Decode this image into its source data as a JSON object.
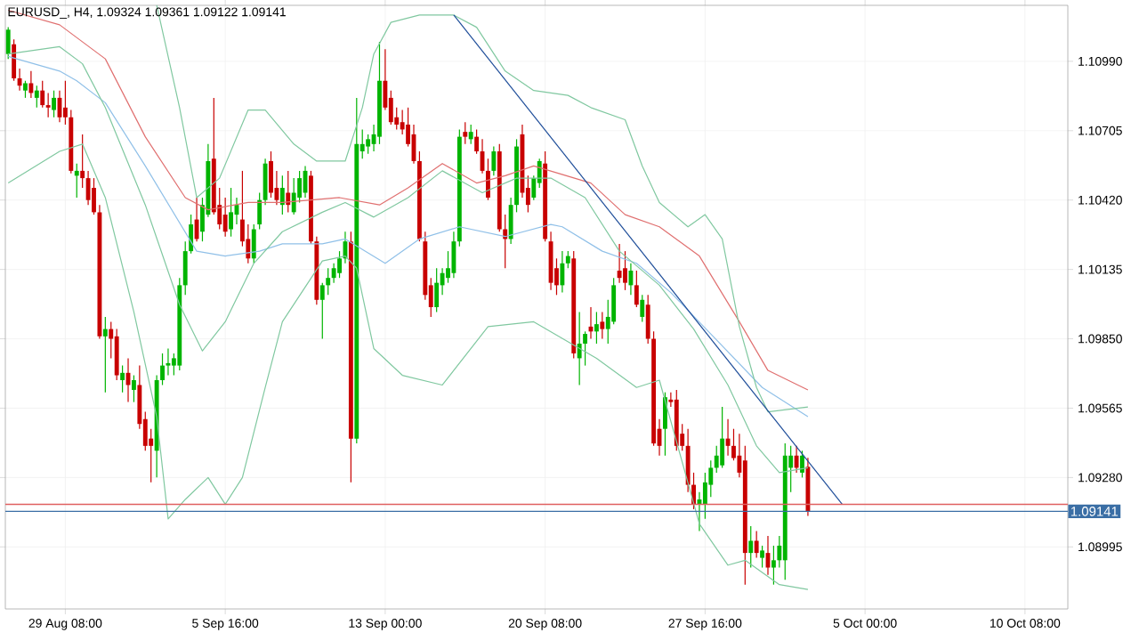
{
  "chart_data": {
    "type": "candlestick",
    "title": "EURUSD_, H4, 1.09324 1.09361 1.09122 1.09141",
    "categories": [
      null,
      null,
      null,
      null,
      null,
      null,
      null,
      null,
      null,
      null,
      "29 Aug 08:00",
      null,
      null,
      null,
      null,
      null,
      null,
      null,
      null,
      null,
      null,
      null,
      null,
      null,
      null,
      null,
      null,
      null,
      null,
      null,
      null,
      null,
      null,
      null,
      null,
      null,
      null,
      null,
      "5 Sep 16:00",
      null,
      null,
      null,
      null,
      null,
      null,
      null,
      null,
      null,
      null,
      null,
      null,
      null,
      null,
      null,
      null,
      null,
      null,
      null,
      null,
      null,
      null,
      null,
      null,
      null,
      null,
      null,
      "13 Sep 00:00",
      null,
      null,
      null,
      null,
      null,
      null,
      null,
      null,
      null,
      null,
      null,
      null,
      null,
      null,
      null,
      null,
      null,
      null,
      null,
      null,
      null,
      null,
      null,
      null,
      null,
      null,
      null,
      "20 Sep 08:00",
      null,
      null,
      null,
      null,
      null,
      null,
      null,
      null,
      null,
      null,
      null,
      null,
      null,
      null,
      null,
      null,
      null,
      null,
      null,
      null,
      null,
      null,
      null,
      null,
      null,
      null,
      null,
      "27 Sep 16:00",
      null,
      null,
      null,
      null,
      null,
      null,
      null,
      null,
      null,
      null,
      null,
      null,
      null,
      null,
      null,
      null,
      null,
      null,
      null,
      null,
      null,
      null,
      null,
      null,
      null,
      null,
      null,
      "5 Oct 00:00",
      null,
      null,
      null,
      null,
      null,
      null,
      null,
      null,
      null,
      null,
      null,
      null,
      null,
      null,
      null,
      null,
      null,
      null,
      null,
      null,
      null,
      null,
      null,
      null,
      null,
      null,
      null,
      "10 Oct 08:00",
      null,
      null,
      null,
      null,
      null,
      null,
      null
    ],
    "colors": [
      "#00b400",
      "#c80000",
      "#c80000",
      "#00b400",
      "#c80000",
      "#00b400",
      "#c80000",
      "#c80000",
      "#00b400",
      "#c80000",
      "#c80000",
      "#c80000",
      "#00b400",
      "#c80000",
      "#c80000",
      "#c80000",
      "#c80000",
      "#00b400",
      "#c80000",
      "#c80000",
      "#00b400",
      "#c80000",
      "#00b400",
      "#c80000",
      "#c80000",
      "#c80000",
      "#00b400",
      "#00b400",
      "#00b400",
      "#00b400",
      "#00b400",
      "#00b400",
      "#00b400",
      "#c80000",
      "#00b400",
      "#00b400",
      "#c80000",
      "#c80000",
      "#c80000",
      "#00b400",
      "#00b400",
      "#c80000",
      "#c80000",
      "#00b400",
      "#00b400",
      "#00b400",
      "#c80000",
      "#c80000",
      "#00b400",
      "#c80000",
      "#00b400",
      "#00b400",
      "#00b400",
      "#c80000",
      "#c80000",
      "#00b400",
      "#00b400",
      "#00b400",
      "#00b400",
      "#00b400",
      "#c80000",
      "#00b400",
      "#00b400",
      "#00b400",
      "#00b400",
      "#00b400",
      "#c80000",
      "#c80000",
      "#c80000",
      "#c80000",
      "#c80000",
      "#c80000",
      "#c80000",
      "#c80000",
      "#c80000",
      "#00b400",
      "#00b400",
      "#00b400",
      "#00b400",
      "#00b400",
      "#c80000",
      "#00b400",
      "#c80000",
      "#c80000",
      "#c80000",
      "#00b400",
      "#c80000",
      "#c80000",
      "#00b400",
      "#00b400",
      "#c80000",
      "#c80000",
      "#00b400",
      "#00b400",
      "#c80000",
      "#c80000",
      "#c80000",
      "#00b400",
      "#00b400",
      "#c80000",
      "#00b400",
      "#00b400",
      "#c80000",
      "#00b400",
      "#c80000",
      "#00b400",
      "#00b400",
      "#c80000",
      "#c80000",
      "#00b400",
      "#c80000",
      "#00b400",
      "#c80000",
      "#c80000",
      "#c80000",
      "#00b400",
      "#c80000",
      "#c80000",
      "#c80000",
      "#c80000",
      "#c80000",
      "#00b400",
      "#00b400",
      "#00b400",
      "#00b400",
      "#00b400",
      "#c80000",
      "#c80000",
      "#c80000",
      "#c80000",
      "#00b400",
      "#c80000",
      "#00b400",
      "#c80000",
      "#00b400",
      "#00b400",
      "#00b400",
      "#00b400",
      "#c80000",
      "#00b400",
      "#c80000",
      null,
      null,
      null,
      null,
      null,
      null,
      null,
      null,
      null,
      null,
      null,
      null,
      null,
      null,
      null,
      null,
      null,
      null,
      null,
      null,
      null,
      null,
      null,
      null,
      null,
      null,
      null,
      null,
      null,
      null,
      null,
      null,
      null,
      null,
      null,
      null,
      null,
      null,
      null,
      null,
      null,
      null,
      null,
      null,
      null
    ],
    "ohlc": [
      [
        1.1102,
        1.1113,
        1.11,
        1.1112
      ],
      [
        1.1106,
        1.1108,
        1.1091,
        1.1092
      ],
      [
        1.1092,
        1.1096,
        1.1087,
        1.1089
      ],
      [
        1.1087,
        1.1091,
        1.1084,
        1.109
      ],
      [
        1.109,
        1.1095,
        1.1084,
        1.1086
      ],
      [
        1.1084,
        1.1089,
        1.108,
        1.1087
      ],
      [
        1.1087,
        1.1091,
        1.108,
        1.1081
      ],
      [
        1.1081,
        1.1086,
        1.1076,
        1.108
      ],
      [
        1.1079,
        1.1087,
        1.1076,
        1.1084
      ],
      [
        1.1084,
        1.1087,
        1.1074,
        1.1076
      ],
      [
        1.108,
        1.1091,
        1.1073,
        1.1076
      ],
      [
        1.1076,
        1.1079,
        1.1053,
        1.1054
      ],
      [
        1.1052,
        1.1057,
        1.1043,
        1.1054
      ],
      [
        1.1054,
        1.1069,
        1.1047,
        1.1051
      ],
      [
        1.1051,
        1.1054,
        1.104,
        1.1042
      ],
      [
        1.1047,
        1.1051,
        1.1036,
        1.1037
      ],
      [
        1.1037,
        1.104,
        1.0985,
        1.0986
      ],
      [
        1.0986,
        1.0994,
        1.0963,
        1.0989
      ],
      [
        1.0989,
        1.0992,
        1.0977,
        1.0985
      ],
      [
        1.0986,
        1.0989,
        1.0968,
        1.097
      ],
      [
        1.0968,
        1.0974,
        1.0963,
        1.0971
      ],
      [
        1.0971,
        1.0977,
        1.0959,
        1.0966
      ],
      [
        1.0964,
        1.097,
        1.0959,
        1.0968
      ],
      [
        1.0966,
        1.0974,
        1.0948,
        1.095
      ],
      [
        1.0952,
        1.0955,
        1.0939,
        1.0941
      ],
      [
        1.0944,
        1.0948,
        1.0926,
        1.0941
      ],
      [
        1.0939,
        1.097,
        1.0928,
        1.0968
      ],
      [
        1.0968,
        1.0979,
        1.0966,
        1.0974
      ],
      [
        1.0974,
        1.0981,
        1.097,
        1.0975
      ],
      [
        1.0974,
        1.0979,
        1.097,
        1.0977
      ],
      [
        1.0974,
        1.101,
        1.0972,
        1.1007
      ],
      [
        1.1007,
        1.1025,
        1.1003,
        1.1021
      ],
      [
        1.1021,
        1.1036,
        1.102,
        1.1032
      ],
      [
        1.1034,
        1.1043,
        1.1025,
        1.1026
      ],
      [
        1.1029,
        1.1043,
        1.1025,
        1.104
      ],
      [
        1.1036,
        1.1065,
        1.1035,
        1.1058
      ],
      [
        1.1059,
        1.1084,
        1.1036,
        1.1037
      ],
      [
        1.104,
        1.1047,
        1.103,
        1.1032
      ],
      [
        1.1036,
        1.1043,
        1.1027,
        1.1029
      ],
      [
        1.103,
        1.1047,
        1.1027,
        1.1037
      ],
      [
        1.1036,
        1.1043,
        1.1032,
        1.104
      ],
      [
        1.1034,
        1.1054,
        1.1023,
        1.1025
      ],
      [
        1.1026,
        1.1032,
        1.1016,
        1.1018
      ],
      [
        1.1018,
        1.1032,
        1.1016,
        1.103
      ],
      [
        1.1032,
        1.1045,
        1.103,
        1.1042
      ],
      [
        1.1042,
        1.1059,
        1.104,
        1.1057
      ],
      [
        1.1058,
        1.1062,
        1.1043,
        1.1045
      ],
      [
        1.1047,
        1.1054,
        1.104,
        1.1042
      ],
      [
        1.104,
        1.1052,
        1.1036,
        1.1047
      ],
      [
        1.1045,
        1.1054,
        1.1037,
        1.104
      ],
      [
        1.1037,
        1.1051,
        1.1036,
        1.1045
      ],
      [
        1.1043,
        1.1054,
        1.1041,
        1.1051
      ],
      [
        1.1045,
        1.1056,
        1.1043,
        1.1054
      ],
      [
        1.1052,
        1.1054,
        1.1024,
        1.1025
      ],
      [
        1.1025,
        1.1027,
        1.0999,
        1.1001
      ],
      [
        1.1001,
        1.1008,
        1.0985,
        1.1007
      ],
      [
        1.1007,
        1.1014,
        1.1003,
        1.101
      ],
      [
        1.101,
        1.1016,
        1.1008,
        1.1014
      ],
      [
        1.1012,
        1.1021,
        1.101,
        1.1018
      ],
      [
        1.1018,
        1.1029,
        1.1016,
        1.1025
      ],
      [
        1.1025,
        1.1029,
        1.0926,
        1.0944
      ],
      [
        1.0944,
        1.1084,
        1.0942,
        1.1065
      ],
      [
        1.1062,
        1.1071,
        1.1059,
        1.1065
      ],
      [
        1.1064,
        1.1069,
        1.1061,
        1.1067
      ],
      [
        1.1065,
        1.1073,
        1.1062,
        1.1069
      ],
      [
        1.1068,
        1.1107,
        1.1065,
        1.1091
      ],
      [
        1.1091,
        1.1104,
        1.1079,
        1.108
      ],
      [
        1.1084,
        1.1087,
        1.1073,
        1.1074
      ],
      [
        1.1076,
        1.108,
        1.1071,
        1.1073
      ],
      [
        1.1074,
        1.1079,
        1.1069,
        1.1071
      ],
      [
        1.1073,
        1.108,
        1.1064,
        1.1065
      ],
      [
        1.1069,
        1.1073,
        1.1057,
        1.1058
      ],
      [
        1.1058,
        1.1062,
        1.1025,
        1.1026
      ],
      [
        1.1025,
        1.1029,
        1.1001,
        1.1003
      ],
      [
        1.1007,
        1.101,
        1.0994,
        1.0998
      ],
      [
        1.0998,
        1.1014,
        1.0996,
        1.1008
      ],
      [
        1.1007,
        1.1014,
        1.1003,
        1.1012
      ],
      [
        1.101,
        1.1021,
        1.1008,
        1.1014
      ],
      [
        1.1012,
        1.1029,
        1.101,
        1.1025
      ],
      [
        1.1025,
        1.1071,
        1.1023,
        1.1068
      ],
      [
        1.107,
        1.1074,
        1.1065,
        1.1068
      ],
      [
        1.1067,
        1.1073,
        1.1065,
        1.107
      ],
      [
        1.1068,
        1.1071,
        1.1061,
        1.1062
      ],
      [
        1.1062,
        1.1067,
        1.1053,
        1.1054
      ],
      [
        1.1054,
        1.1059,
        1.1042,
        1.1043
      ],
      [
        1.1054,
        1.1064,
        1.1052,
        1.1062
      ],
      [
        1.1062,
        1.1065,
        1.1029,
        1.103
      ],
      [
        1.103,
        1.1036,
        1.1014,
        1.1026
      ],
      [
        1.1026,
        1.1043,
        1.1024,
        1.104
      ],
      [
        1.104,
        1.1067,
        1.1037,
        1.1064
      ],
      [
        1.1069,
        1.1073,
        1.1043,
        1.1045
      ],
      [
        1.1047,
        1.1052,
        1.1037,
        1.104
      ],
      [
        1.1043,
        1.1052,
        1.1042,
        1.1051
      ],
      [
        1.1049,
        1.1059,
        1.1047,
        1.1058
      ],
      [
        1.1057,
        1.1062,
        1.1025,
        1.1026
      ],
      [
        1.1025,
        1.1029,
        1.1005,
        1.1008
      ],
      [
        1.1014,
        1.1018,
        1.1003,
        1.1007
      ],
      [
        1.1007,
        1.1021,
        1.1004,
        1.1016
      ],
      [
        1.1016,
        1.1021,
        1.1014,
        1.1019
      ],
      [
        1.1018,
        1.1021,
        1.0977,
        1.0979
      ],
      [
        1.0977,
        1.0996,
        1.0966,
        1.0983
      ],
      [
        1.0983,
        1.0988,
        1.0974,
        1.0987
      ],
      [
        1.099,
        1.0998,
        1.0985,
        1.0988
      ],
      [
        1.0988,
        1.0996,
        1.0983,
        1.0991
      ],
      [
        1.0992,
        1.0996,
        1.0985,
        1.0989
      ],
      [
        1.0989,
        1.1001,
        1.0983,
        1.0994
      ],
      [
        1.0992,
        1.101,
        1.0991,
        1.1007
      ],
      [
        1.1013,
        1.1024,
        1.1008,
        1.101
      ],
      [
        1.1014,
        1.1021,
        1.1005,
        1.1008
      ],
      [
        1.1007,
        1.1016,
        1.1003,
        1.1013
      ],
      [
        1.1007,
        1.1013,
        1.0998,
        1.0999
      ],
      [
        1.0994,
        1.1003,
        1.0992,
        1.1001
      ],
      [
        1.0999,
        1.1003,
        1.0983,
        1.0985
      ],
      [
        1.0985,
        1.0988,
        1.0941,
        1.0942
      ],
      [
        1.0948,
        1.0952,
        1.0937,
        1.0941
      ],
      [
        1.0948,
        1.0963,
        1.0937,
        1.0961
      ],
      [
        1.096,
        1.0963,
        1.0957,
        1.0959
      ],
      [
        1.096,
        1.0964,
        1.0939,
        1.0941
      ],
      [
        1.0946,
        1.095,
        1.0939,
        1.0941
      ],
      [
        1.0941,
        1.0948,
        1.0922,
        1.0925
      ],
      [
        1.0925,
        1.093,
        1.0915,
        1.0917
      ],
      [
        1.0917,
        1.0922,
        1.0906,
        1.0919
      ],
      [
        1.0917,
        1.093,
        1.0911,
        1.0926
      ],
      [
        1.0925,
        1.0935,
        1.092,
        1.0932
      ],
      [
        1.0932,
        1.0941,
        1.093,
        1.0937
      ],
      [
        1.0933,
        1.0957,
        1.0932,
        1.0944
      ],
      [
        1.0944,
        1.0952,
        1.0937,
        1.0941
      ],
      [
        1.0941,
        1.0948,
        1.0935,
        1.0936
      ],
      [
        1.0937,
        1.0946,
        1.0928,
        1.093
      ],
      [
        1.0935,
        1.0941,
        1.0884,
        1.0897
      ],
      [
        1.0897,
        1.0908,
        1.0891,
        1.0902
      ],
      [
        1.0902,
        1.0906,
        1.0895,
        1.0897
      ],
      [
        1.0895,
        1.09,
        1.0891,
        1.0898
      ],
      [
        1.0897,
        1.0904,
        1.0888,
        1.0891
      ],
      [
        1.0891,
        1.09,
        1.0884,
        1.0894
      ],
      [
        1.0894,
        1.0904,
        1.0891,
        1.09
      ],
      [
        1.0894,
        1.0942,
        1.0886,
        1.0937
      ],
      [
        1.0932,
        1.0941,
        1.0922,
        1.0937
      ],
      [
        1.0937,
        1.0941,
        1.093,
        1.0932
      ],
      [
        1.093,
        1.0939,
        1.0928,
        1.0937
      ],
      [
        1.09324,
        1.09361,
        1.09122,
        1.09141
      ],
      null,
      null,
      null,
      null,
      null,
      null,
      null,
      null,
      null,
      null,
      null,
      null,
      null,
      null,
      null,
      null,
      null,
      null,
      null,
      null,
      null,
      null,
      null,
      null,
      null,
      null,
      null,
      null,
      null,
      null,
      null,
      null,
      null,
      null,
      null,
      null,
      null,
      null,
      null,
      null,
      null,
      null,
      null,
      null,
      null
    ],
    "series": [
      {
        "type": "line",
        "color": "#e07070",
        "values": [
          1.112,
          null,
          null,
          null,
          null,
          null,
          null,
          null,
          null,
          1.1114,
          null,
          null,
          null,
          null,
          null,
          null,
          null,
          1.11,
          null,
          null,
          null,
          null,
          null,
          null,
          1.1068,
          null,
          null,
          null,
          null,
          null,
          null,
          1.1043,
          null,
          null,
          null,
          1.1038,
          null,
          null,
          null,
          null,
          null,
          null,
          1.1041,
          null,
          null,
          null,
          null,
          null,
          1.1041,
          null,
          null,
          null,
          null,
          null,
          null,
          null,
          null,
          null,
          1.1043,
          null,
          null,
          null,
          null,
          null,
          null,
          1.104,
          null,
          null,
          null,
          null,
          1.1047,
          null,
          null,
          null,
          null,
          null,
          1.1057,
          null,
          null,
          null,
          null,
          null,
          1.1049,
          null,
          null,
          null,
          null,
          1.1052,
          null,
          null,
          null,
          null,
          1.1056,
          null,
          null,
          null,
          null,
          null,
          null,
          null,
          null,
          null,
          1.1049,
          null,
          null,
          null,
          null,
          null,
          1.1036,
          null,
          null,
          null,
          null,
          null,
          1.1031,
          null,
          null,
          null,
          null,
          null,
          null,
          1.1019,
          null,
          null,
          null,
          null,
          null,
          null,
          1.0992,
          null,
          null,
          null,
          null,
          1.0972,
          null,
          null,
          null,
          null,
          null,
          null,
          1.0964,
          null,
          null,
          null,
          null,
          null,
          null,
          null,
          null,
          null,
          null,
          null,
          null,
          null,
          null,
          null,
          null,
          null,
          null,
          null,
          null,
          null,
          null,
          null,
          null,
          null,
          null,
          null,
          null,
          null,
          null,
          null,
          null,
          null,
          null,
          null,
          null,
          null,
          null,
          null,
          null,
          null,
          null,
          null,
          null,
          null
        ]
      },
      {
        "type": "line",
        "color": "#90c0e8",
        "values": [
          1.1101,
          null,
          null,
          null,
          null,
          null,
          null,
          null,
          null,
          1.1095,
          null,
          null,
          1.1091,
          null,
          null,
          null,
          null,
          1.1082,
          null,
          null,
          null,
          null,
          null,
          null,
          1.1056,
          null,
          null,
          null,
          null,
          null,
          null,
          null,
          null,
          1.1021,
          null,
          null,
          null,
          null,
          1.1019,
          null,
          null,
          null,
          null,
          null,
          1.1021,
          null,
          null,
          null,
          1.1024,
          null,
          null,
          null,
          null,
          null,
          null,
          1.1024,
          null,
          null,
          null,
          1.1026,
          null,
          null,
          null,
          null,
          null,
          null,
          1.1016,
          null,
          null,
          null,
          null,
          null,
          1.1026,
          null,
          null,
          null,
          null,
          null,
          null,
          1.1031,
          null,
          null,
          null,
          null,
          null,
          null,
          null,
          1.1027,
          null,
          null,
          null,
          null,
          null,
          null,
          null,
          1.1032,
          null,
          1.1031,
          null,
          null,
          null,
          null,
          null,
          null,
          1.1021,
          null,
          null,
          null,
          null,
          null,
          1.1016,
          null,
          null,
          null,
          null,
          null,
          1.1004,
          null,
          null,
          null,
          null,
          null,
          null,
          1.0987,
          null,
          null,
          null,
          null,
          null,
          null,
          null,
          null,
          1.0965,
          null,
          null,
          null,
          null,
          null,
          null,
          null,
          1.0953,
          null,
          null,
          null,
          null,
          null,
          null,
          null,
          null,
          null,
          null,
          null,
          null,
          null,
          null,
          null,
          null,
          null,
          null,
          null,
          null,
          null,
          null,
          null,
          null,
          null,
          null,
          null,
          null,
          null,
          null,
          null,
          null,
          null,
          null,
          null,
          null,
          null,
          null,
          null,
          null,
          null,
          null,
          null,
          null,
          null
        ]
      },
      {
        "type": "line",
        "color": "#80c8a0",
        "values": [
          null,
          null,
          null,
          null,
          null,
          null,
          null,
          null,
          null,
          null,
          null,
          null,
          null,
          null,
          null,
          null,
          null,
          null,
          null,
          null,
          null,
          null,
          null,
          null,
          null,
          null,
          1.1122,
          null,
          null,
          null,
          1.108,
          null,
          null,
          1.1043,
          null,
          null,
          null,
          1.1051,
          null,
          null,
          null,
          null,
          1.1079,
          null,
          null,
          1.1079,
          null,
          null,
          null,
          null,
          1.1065,
          null,
          null,
          null,
          1.1058,
          null,
          null,
          null,
          null,
          1.1058,
          null,
          null,
          1.108,
          null,
          1.1102,
          null,
          null,
          1.1115,
          null,
          null,
          null,
          null,
          1.1118,
          null,
          null,
          null,
          null,
          null,
          1.1118,
          null,
          null,
          null,
          1.1113,
          null,
          null,
          null,
          null,
          1.1095,
          null,
          null,
          null,
          null,
          1.1087,
          null,
          null,
          null,
          null,
          null,
          1.1085,
          null,
          null,
          null,
          1.108,
          null,
          null,
          null,
          null,
          null,
          1.1075,
          null,
          null,
          1.1056,
          null,
          null,
          1.1041,
          null,
          null,
          null,
          null,
          1.1031,
          null,
          null,
          1.1036,
          null,
          null,
          1.1026,
          null,
          null,
          1.099,
          null,
          null,
          1.0965,
          null,
          1.0955,
          null,
          null,
          null,
          null,
          null,
          null,
          1.0957,
          null,
          null,
          null,
          null,
          null,
          null,
          null,
          null,
          null,
          null,
          null,
          null,
          null,
          null,
          null,
          null,
          null,
          null,
          null,
          null,
          null,
          null,
          null,
          null,
          null,
          null,
          null,
          null,
          null,
          null,
          null,
          null,
          null,
          null,
          null,
          null,
          null,
          null,
          null,
          null,
          null,
          null,
          null,
          null,
          null
        ]
      },
      {
        "type": "line",
        "color": "#80c8a0",
        "values": [
          1.1102,
          null,
          null,
          null,
          null,
          null,
          null,
          null,
          null,
          1.1105,
          null,
          null,
          null,
          1.1098,
          null,
          null,
          null,
          1.108,
          null,
          null,
          null,
          null,
          null,
          null,
          1.104,
          null,
          null,
          null,
          null,
          null,
          1.0999,
          null,
          null,
          null,
          1.098,
          null,
          null,
          null,
          1.0992,
          null,
          null,
          null,
          null,
          1.1016,
          null,
          null,
          null,
          null,
          1.1029,
          null,
          null,
          null,
          null,
          null,
          null,
          1.1037,
          null,
          null,
          null,
          1.1041,
          null,
          null,
          null,
          null,
          1.1035,
          null,
          null,
          null,
          null,
          null,
          1.1043,
          null,
          null,
          null,
          null,
          null,
          1.1054,
          null,
          null,
          null,
          null,
          null,
          null,
          1.1045,
          null,
          null,
          null,
          null,
          null,
          1.1051,
          null,
          null,
          null,
          null,
          null,
          1.1051,
          null,
          null,
          null,
          null,
          null,
          1.1043,
          null,
          null,
          null,
          null,
          null,
          1.1021,
          null,
          null,
          null,
          null,
          null,
          null,
          1.1007,
          null,
          null,
          null,
          null,
          null,
          1.0989,
          null,
          null,
          null,
          null,
          null,
          1.0966,
          null,
          null,
          null,
          null,
          1.0941,
          null,
          null,
          null,
          1.093,
          null,
          null,
          null,
          null,
          1.0932,
          null,
          null,
          null,
          null,
          null,
          null,
          null,
          null,
          null,
          null,
          null,
          null,
          null,
          null,
          null,
          null,
          null,
          null,
          null,
          null,
          null,
          null,
          null,
          null,
          null,
          null,
          null,
          null,
          null,
          null,
          null,
          null,
          null,
          null,
          null,
          null,
          null,
          null,
          null,
          null,
          null,
          null,
          null,
          null,
          null
        ]
      },
      {
        "type": "line",
        "color": "#80c8a0",
        "values": [
          1.1049,
          null,
          null,
          null,
          null,
          null,
          null,
          null,
          null,
          1.1062,
          null,
          null,
          null,
          1.1065,
          null,
          null,
          null,
          1.1043,
          null,
          null,
          null,
          null,
          1.0996,
          null,
          null,
          null,
          1.0953,
          null,
          1.0911,
          null,
          null,
          1.0919,
          null,
          null,
          null,
          1.0928,
          null,
          null,
          1.0917,
          null,
          null,
          1.0928,
          null,
          null,
          null,
          1.0965,
          null,
          null,
          1.0992,
          null,
          null,
          null,
          null,
          null,
          null,
          1.1017,
          null,
          null,
          null,
          1.1019,
          null,
          1.1014,
          null,
          null,
          1.0981,
          null,
          null,
          null,
          null,
          1.097,
          null,
          null,
          null,
          null,
          null,
          null,
          1.0966,
          null,
          null,
          null,
          null,
          null,
          null,
          null,
          1.099,
          null,
          null,
          null,
          null,
          null,
          null,
          null,
          1.0992,
          null,
          null,
          null,
          null,
          null,
          null,
          null,
          null,
          null,
          null,
          1.0977,
          null,
          null,
          null,
          null,
          null,
          null,
          1.0965,
          null,
          null,
          null,
          1.0968,
          null,
          null,
          null,
          null,
          null,
          null,
          1.0909,
          null,
          null,
          null,
          null,
          1.0892,
          null,
          null,
          1.0894,
          null,
          null,
          null,
          null,
          null,
          1.0884,
          null,
          null,
          null,
          null,
          1.0882,
          null,
          null,
          null,
          null,
          null,
          null,
          null,
          null,
          null,
          null,
          null,
          null,
          null,
          null,
          null,
          null,
          null,
          null,
          null,
          null,
          null,
          null,
          null,
          null,
          null,
          null,
          null,
          null,
          null,
          null,
          null,
          null,
          null,
          null,
          null,
          null,
          null,
          null,
          null,
          null,
          null,
          null,
          null,
          null,
          null
        ]
      },
      {
        "type": "line",
        "color": "#1f4e9a",
        "values": [
          null,
          null,
          null,
          null,
          null,
          null,
          null,
          null,
          null,
          null,
          null,
          null,
          null,
          null,
          null,
          null,
          null,
          null,
          null,
          null,
          null,
          null,
          null,
          null,
          null,
          null,
          null,
          null,
          null,
          null,
          null,
          null,
          null,
          null,
          null,
          null,
          null,
          null,
          null,
          null,
          null,
          null,
          null,
          null,
          null,
          null,
          null,
          null,
          null,
          null,
          null,
          null,
          null,
          null,
          null,
          null,
          null,
          null,
          null,
          null,
          null,
          null,
          null,
          null,
          null,
          null,
          null,
          null,
          null,
          null,
          null,
          null,
          null,
          null,
          null,
          null,
          null,
          null,
          1.1118,
          null,
          null,
          null,
          null,
          null,
          null,
          null,
          null,
          null,
          null,
          null,
          null,
          null,
          null,
          null,
          null,
          null,
          null,
          null,
          null,
          null,
          null,
          null,
          null,
          null,
          null,
          null,
          null,
          null,
          null,
          null,
          null,
          null,
          null,
          null,
          null,
          null,
          null,
          null,
          null,
          null,
          null,
          null,
          null,
          null,
          null,
          null,
          null,
          null,
          null,
          null,
          null,
          null,
          null,
          null,
          null,
          null,
          null,
          null,
          null,
          null,
          null,
          null,
          null,
          null,
          null,
          null,
          1.0917,
          null,
          null,
          null,
          null,
          null,
          null,
          null,
          null,
          null,
          null,
          null,
          null,
          null,
          null,
          null,
          null,
          null,
          null,
          null,
          null,
          null,
          null,
          null,
          null,
          null,
          null,
          null,
          null,
          null,
          null,
          null,
          null,
          null,
          null,
          null,
          null,
          null,
          null,
          null
        ]
      }
    ],
    "ref_lines": [
      {
        "axis": "y",
        "value": 1.0917,
        "color": "#e06060"
      },
      {
        "axis": "y",
        "value": 1.09141,
        "label": "1.09141",
        "color": "#3a6ea5"
      }
    ],
    "ylim": [
      1.0874,
      1.1122
    ],
    "yticks": [
      {
        "value": 1.08995,
        "label": "1.08995"
      },
      {
        "value": 1.0928,
        "label": "1.09280"
      },
      {
        "value": 1.09565,
        "label": "1.09565"
      },
      {
        "value": 1.0985,
        "label": "1.09850"
      },
      {
        "value": 1.10135,
        "label": "1.10135"
      },
      {
        "value": 1.1042,
        "label": "1.10420"
      },
      {
        "value": 1.10705,
        "label": "1.10705"
      },
      {
        "value": 1.1099,
        "label": "1.10990"
      }
    ],
    "grid": true
  }
}
